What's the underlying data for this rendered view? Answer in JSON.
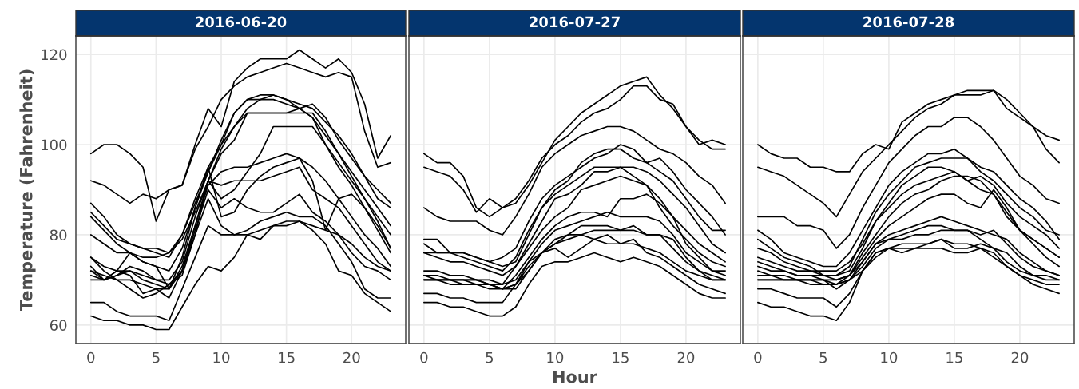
{
  "chart_data": [
    {
      "type": "line",
      "title": "2016-06-20",
      "ylabel": "Temperature (Fahrenheit)",
      "x": [
        0,
        1,
        2,
        3,
        4,
        5,
        6,
        7,
        8,
        9,
        10,
        11,
        12,
        13,
        14,
        15,
        16,
        17,
        18,
        19,
        20,
        21,
        22,
        23
      ],
      "xlim": [
        -1.15,
        24.15
      ],
      "ylim": [
        55.9,
        124.1
      ],
      "xticks": [
        0,
        5,
        10,
        15,
        20
      ],
      "yticks": [
        60,
        80,
        100,
        120
      ],
      "grid": true,
      "marker": "none",
      "line_style": "solid",
      "series": [
        {
          "color": "#000000",
          "values": [
            98,
            100,
            100,
            98,
            95,
            83,
            90,
            91,
            100,
            108,
            104,
            114,
            117,
            119,
            119,
            119,
            121,
            119,
            117,
            119,
            116,
            109,
            97,
            102
          ]
        },
        {
          "color": "#000000",
          "values": [
            92,
            91,
            89,
            87,
            89,
            88,
            90,
            91,
            99,
            104,
            110,
            113,
            115,
            116,
            117,
            118,
            117,
            116,
            115,
            116,
            115,
            103,
            95,
            96
          ]
        },
        {
          "color": "#000000",
          "values": [
            87,
            84,
            80,
            78,
            77,
            76,
            75,
            80,
            88,
            95,
            100,
            107,
            110,
            111,
            111,
            110,
            109,
            108,
            105,
            102,
            98,
            93,
            90,
            87
          ]
        },
        {
          "color": "#000000",
          "values": [
            85,
            82,
            79,
            78,
            77,
            77,
            76,
            79,
            85,
            92,
            99,
            104,
            108,
            110,
            110,
            109,
            108,
            109,
            106,
            101,
            97,
            93,
            88,
            86
          ]
        },
        {
          "color": "#000000",
          "values": [
            80,
            78,
            76,
            76,
            75,
            75,
            76,
            80,
            87,
            94,
            101,
            107,
            110,
            110,
            111,
            110,
            108,
            106,
            102,
            98,
            94,
            90,
            86,
            82
          ]
        },
        {
          "color": "#000000",
          "values": [
            84,
            81,
            78,
            76,
            74,
            73,
            72,
            77,
            86,
            94,
            100,
            104,
            107,
            107,
            107,
            107,
            108,
            106,
            100,
            96,
            92,
            88,
            84,
            80
          ]
        },
        {
          "color": "#000000",
          "values": [
            75,
            73,
            72,
            72,
            71,
            70,
            70,
            74,
            84,
            92,
            98,
            101,
            107,
            107,
            107,
            107,
            107,
            107,
            103,
            98,
            93,
            88,
            83,
            77
          ]
        },
        {
          "color": "#000000",
          "values": [
            72,
            71,
            70,
            70,
            69,
            68,
            68,
            72,
            82,
            92,
            88,
            90,
            94,
            98,
            104,
            104,
            104,
            104,
            100,
            95,
            91,
            86,
            82,
            77
          ]
        },
        {
          "color": "#000000",
          "values": [
            70,
            70,
            71,
            72,
            70,
            69,
            68,
            73,
            82,
            91,
            94,
            95,
            95,
            96,
            97,
            98,
            97,
            95,
            92,
            88,
            84,
            80,
            77,
            73
          ]
        },
        {
          "color": "#000000",
          "values": [
            71,
            70,
            71,
            73,
            72,
            70,
            69,
            71,
            80,
            92,
            91,
            92,
            92,
            92,
            93,
            94,
            95,
            90,
            88,
            86,
            82,
            78,
            74,
            72
          ]
        },
        {
          "color": "#000000",
          "values": [
            73,
            70,
            72,
            71,
            67,
            68,
            66,
            72,
            81,
            90,
            86,
            88,
            86,
            85,
            85,
            87,
            89,
            85,
            83,
            80,
            76,
            73,
            72,
            70
          ]
        },
        {
          "color": "#000000",
          "values": [
            75,
            72,
            70,
            68,
            66,
            67,
            69,
            72,
            80,
            88,
            82,
            80,
            80,
            79,
            82,
            82,
            83,
            82,
            81,
            80,
            78,
            75,
            73,
            72
          ]
        },
        {
          "color": "#000000",
          "values": [
            65,
            65,
            63,
            62,
            62,
            62,
            61,
            68,
            75,
            82,
            80,
            80,
            81,
            83,
            84,
            85,
            84,
            84,
            82,
            78,
            74,
            68,
            66,
            66
          ]
        },
        {
          "color": "#000000",
          "values": [
            62,
            61,
            61,
            60,
            60,
            59,
            59,
            64,
            69,
            73,
            72,
            75,
            80,
            81,
            82,
            83,
            83,
            81,
            78,
            72,
            71,
            67,
            65,
            63
          ]
        },
        {
          "color": "#000000",
          "values": [
            72,
            70,
            72,
            76,
            74,
            73,
            68,
            75,
            86,
            95,
            84,
            85,
            90,
            93,
            95,
            96,
            97,
            92,
            81,
            88,
            89,
            86,
            81,
            76
          ]
        }
      ]
    },
    {
      "type": "line",
      "title": "2016-07-27",
      "xlabel": "Hour",
      "x": [
        0,
        1,
        2,
        3,
        4,
        5,
        6,
        7,
        8,
        9,
        10,
        11,
        12,
        13,
        14,
        15,
        16,
        17,
        18,
        19,
        20,
        21,
        22,
        23
      ],
      "xlim": [
        -1.15,
        24.15
      ],
      "ylim": [
        55.9,
        124.1
      ],
      "xticks": [
        0,
        5,
        10,
        15,
        20
      ],
      "yticks": [
        60,
        80,
        100,
        120
      ],
      "tick_labels": "x",
      "grid": true,
      "marker": "none",
      "line_style": "solid",
      "series": [
        {
          "color": "#000000",
          "values": [
            98,
            96,
            96,
            93,
            86,
            84,
            86,
            87,
            91,
            96,
            101,
            104,
            107,
            109,
            111,
            113,
            114,
            115,
            111,
            108,
            104,
            101,
            99,
            99
          ]
        },
        {
          "color": "#000000",
          "values": [
            95,
            94,
            93,
            90,
            85,
            88,
            86,
            88,
            92,
            97,
            100,
            102,
            105,
            107,
            108,
            110,
            113,
            113,
            110,
            109,
            104,
            100,
            101,
            100
          ]
        },
        {
          "color": "#000000",
          "values": [
            86,
            84,
            83,
            83,
            83,
            81,
            80,
            84,
            89,
            95,
            98,
            100,
            102,
            103,
            104,
            104,
            103,
            101,
            99,
            98,
            96,
            93,
            91,
            87
          ]
        },
        {
          "color": "#000000",
          "values": [
            79,
            79,
            76,
            76,
            75,
            74,
            75,
            77,
            83,
            88,
            91,
            93,
            95,
            97,
            98,
            100,
            99,
            96,
            94,
            92,
            88,
            84,
            81,
            81
          ]
        },
        {
          "color": "#000000",
          "values": [
            78,
            76,
            76,
            75,
            74,
            73,
            72,
            75,
            81,
            86,
            90,
            92,
            96,
            98,
            99,
            99,
            97,
            96,
            97,
            94,
            90,
            87,
            84,
            80
          ]
        },
        {
          "color": "#000000",
          "values": [
            76,
            76,
            76,
            76,
            75,
            74,
            73,
            74,
            80,
            86,
            89,
            91,
            93,
            95,
            95,
            95,
            95,
            94,
            92,
            89,
            86,
            82,
            78,
            76
          ]
        },
        {
          "color": "#000000",
          "values": [
            76,
            75,
            74,
            74,
            73,
            72,
            71,
            73,
            78,
            83,
            88,
            89,
            91,
            94,
            94,
            95,
            93,
            91,
            88,
            84,
            81,
            78,
            76,
            74
          ]
        },
        {
          "color": "#000000",
          "values": [
            72,
            72,
            71,
            71,
            70,
            70,
            69,
            73,
            77,
            81,
            84,
            86,
            90,
            91,
            92,
            93,
            92,
            91,
            86,
            82,
            79,
            76,
            74,
            73
          ]
        },
        {
          "color": "#000000",
          "values": [
            71,
            71,
            70,
            70,
            70,
            69,
            68,
            71,
            75,
            79,
            82,
            84,
            85,
            85,
            84,
            88,
            88,
            89,
            87,
            84,
            78,
            75,
            72,
            72
          ]
        },
        {
          "color": "#000000",
          "values": [
            71,
            70,
            70,
            70,
            70,
            69,
            69,
            70,
            74,
            78,
            81,
            82,
            83,
            84,
            85,
            84,
            84,
            84,
            83,
            80,
            76,
            74,
            72,
            71
          ]
        },
        {
          "color": "#000000",
          "values": [
            70,
            70,
            69,
            69,
            69,
            68,
            68,
            69,
            73,
            76,
            79,
            80,
            82,
            82,
            82,
            81,
            82,
            80,
            80,
            77,
            74,
            72,
            71,
            70
          ]
        },
        {
          "color": "#000000",
          "values": [
            70,
            70,
            70,
            70,
            69,
            69,
            68,
            68,
            72,
            76,
            78,
            80,
            80,
            79,
            78,
            78,
            78,
            77,
            76,
            74,
            72,
            71,
            70,
            70
          ]
        },
        {
          "color": "#000000",
          "values": [
            67,
            67,
            66,
            66,
            65,
            65,
            65,
            69,
            74,
            76,
            77,
            75,
            77,
            79,
            80,
            78,
            79,
            76,
            75,
            73,
            71,
            69,
            68,
            67
          ]
        },
        {
          "color": "#000000",
          "values": [
            65,
            65,
            64,
            64,
            63,
            62,
            62,
            64,
            69,
            73,
            74,
            74,
            75,
            76,
            75,
            74,
            75,
            74,
            73,
            71,
            69,
            67,
            66,
            66
          ]
        },
        {
          "color": "#000000",
          "values": [
            70,
            70,
            70,
            69,
            69,
            69,
            68,
            69,
            72,
            76,
            78,
            79,
            80,
            81,
            81,
            81,
            81,
            80,
            80,
            79,
            75,
            72,
            70,
            70
          ]
        }
      ]
    },
    {
      "type": "line",
      "title": "2016-07-28",
      "x": [
        0,
        1,
        2,
        3,
        4,
        5,
        6,
        7,
        8,
        9,
        10,
        11,
        12,
        13,
        14,
        15,
        16,
        17,
        18,
        19,
        20,
        21,
        22,
        23
      ],
      "xlim": [
        -1.15,
        24.15
      ],
      "ylim": [
        55.9,
        124.1
      ],
      "xticks": [
        0,
        5,
        10,
        15,
        20
      ],
      "yticks": [
        60,
        80,
        100,
        120
      ],
      "tick_labels": "x",
      "grid": true,
      "marker": "none",
      "line_style": "solid",
      "series": [
        {
          "color": "#000000",
          "values": [
            100,
            98,
            97,
            97,
            95,
            95,
            94,
            94,
            98,
            100,
            99,
            105,
            107,
            109,
            110,
            111,
            112,
            112,
            112,
            110,
            107,
            104,
            99,
            96
          ]
        },
        {
          "color": "#000000",
          "values": [
            95,
            94,
            93,
            91,
            89,
            87,
            84,
            89,
            94,
            97,
            100,
            103,
            106,
            108,
            109,
            111,
            111,
            111,
            112,
            108,
            106,
            104,
            102,
            101
          ]
        },
        {
          "color": "#000000",
          "values": [
            84,
            84,
            84,
            82,
            82,
            81,
            77,
            80,
            86,
            91,
            96,
            99,
            102,
            104,
            104,
            106,
            106,
            104,
            101,
            97,
            93,
            91,
            88,
            87
          ]
        },
        {
          "color": "#000000",
          "values": [
            81,
            79,
            76,
            75,
            74,
            73,
            73,
            76,
            81,
            86,
            91,
            94,
            96,
            98,
            98,
            99,
            97,
            94,
            92,
            89,
            86,
            84,
            81,
            80
          ]
        },
        {
          "color": "#000000",
          "values": [
            79,
            77,
            75,
            74,
            73,
            71,
            71,
            73,
            79,
            85,
            89,
            92,
            95,
            96,
            97,
            97,
            97,
            95,
            94,
            91,
            88,
            86,
            83,
            79
          ]
        },
        {
          "color": "#000000",
          "values": [
            77,
            76,
            74,
            73,
            72,
            72,
            72,
            74,
            78,
            83,
            87,
            91,
            93,
            95,
            95,
            94,
            92,
            93,
            91,
            87,
            84,
            82,
            80,
            77
          ]
        },
        {
          "color": "#000000",
          "values": [
            75,
            74,
            73,
            72,
            72,
            71,
            71,
            72,
            77,
            83,
            86,
            89,
            91,
            92,
            93,
            94,
            92,
            90,
            89,
            84,
            81,
            79,
            77,
            75
          ]
        },
        {
          "color": "#000000",
          "values": [
            74,
            73,
            72,
            71,
            71,
            71,
            70,
            71,
            76,
            80,
            84,
            87,
            89,
            90,
            92,
            93,
            93,
            92,
            89,
            85,
            81,
            79,
            77,
            75
          ]
        },
        {
          "color": "#000000",
          "values": [
            73,
            72,
            72,
            71,
            71,
            70,
            70,
            71,
            75,
            79,
            82,
            84,
            86,
            88,
            89,
            89,
            87,
            86,
            90,
            86,
            81,
            78,
            75,
            73
          ]
        },
        {
          "color": "#000000",
          "values": [
            72,
            71,
            71,
            70,
            70,
            70,
            69,
            70,
            74,
            78,
            80,
            81,
            82,
            83,
            84,
            83,
            82,
            81,
            80,
            79,
            76,
            74,
            72,
            71
          ]
        },
        {
          "color": "#000000",
          "values": [
            71,
            71,
            70,
            70,
            70,
            69,
            69,
            71,
            74,
            78,
            79,
            80,
            81,
            82,
            82,
            81,
            81,
            80,
            81,
            78,
            75,
            73,
            72,
            71
          ]
        },
        {
          "color": "#000000",
          "values": [
            70,
            70,
            70,
            70,
            70,
            70,
            68,
            70,
            73,
            77,
            79,
            79,
            80,
            80,
            81,
            81,
            81,
            79,
            77,
            76,
            73,
            71,
            70,
            70
          ]
        },
        {
          "color": "#000000",
          "values": [
            70,
            70,
            70,
            70,
            69,
            69,
            69,
            70,
            72,
            76,
            77,
            78,
            78,
            78,
            79,
            77,
            77,
            78,
            77,
            74,
            72,
            71,
            71,
            70
          ]
        },
        {
          "color": "#000000",
          "values": [
            68,
            68,
            67,
            66,
            66,
            66,
            64,
            67,
            72,
            76,
            77,
            77,
            77,
            77,
            77,
            76,
            76,
            77,
            76,
            73,
            71,
            69,
            68,
            67
          ]
        },
        {
          "color": "#000000",
          "values": [
            65,
            64,
            64,
            63,
            62,
            62,
            61,
            65,
            72,
            75,
            77,
            76,
            77,
            78,
            79,
            78,
            78,
            77,
            75,
            73,
            71,
            70,
            69,
            69
          ]
        }
      ]
    }
  ]
}
